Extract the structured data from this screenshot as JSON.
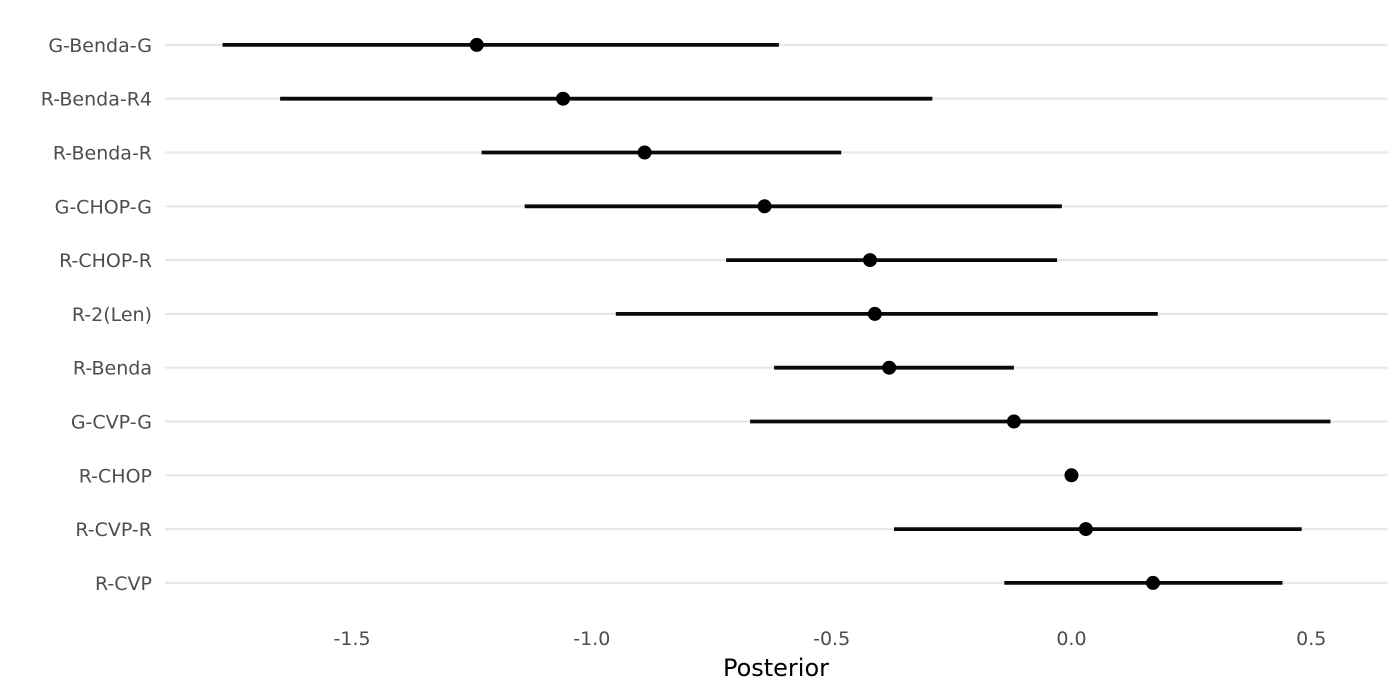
{
  "chart_data": {
    "type": "scatter",
    "subtype": "forest_pointrange",
    "title": "",
    "xlabel": "Posterior",
    "ylabel": "",
    "xlim": [
      -1.89,
      0.66
    ],
    "x_ticks": [
      -1.5,
      -1.0,
      -0.5,
      0.0,
      0.5
    ],
    "x_tick_labels": [
      "-1.5",
      "-1.0",
      "-0.5",
      "0.0",
      "0.5"
    ],
    "grid": "horizontal-only",
    "legend": "none",
    "categories": [
      "G-Benda-G",
      "R-Benda-R4",
      "R-Benda-R",
      "G-CHOP-G",
      "R-CHOP-R",
      "R-2(Len)",
      "R-Benda",
      "G-CVP-G",
      "R-CHOP",
      "R-CVP-R",
      "R-CVP"
    ],
    "rows": [
      {
        "label": "G-Benda-G",
        "estimate": -1.24,
        "lower": -1.77,
        "upper": -0.61
      },
      {
        "label": "R-Benda-R4",
        "estimate": -1.06,
        "lower": -1.65,
        "upper": -0.29
      },
      {
        "label": "R-Benda-R",
        "estimate": -0.89,
        "lower": -1.23,
        "upper": -0.48
      },
      {
        "label": "G-CHOP-G",
        "estimate": -0.64,
        "lower": -1.14,
        "upper": -0.02
      },
      {
        "label": "R-CHOP-R",
        "estimate": -0.42,
        "lower": -0.72,
        "upper": -0.03
      },
      {
        "label": "R-2(Len)",
        "estimate": -0.41,
        "lower": -0.95,
        "upper": 0.18
      },
      {
        "label": "R-Benda",
        "estimate": -0.38,
        "lower": -0.62,
        "upper": -0.12
      },
      {
        "label": "G-CVP-G",
        "estimate": -0.12,
        "lower": -0.67,
        "upper": 0.54
      },
      {
        "label": "R-CHOP",
        "estimate": 0.0,
        "lower": 0.0,
        "upper": 0.0
      },
      {
        "label": "R-CVP-R",
        "estimate": 0.03,
        "lower": -0.37,
        "upper": 0.48
      },
      {
        "label": "R-CVP",
        "estimate": 0.17,
        "lower": -0.14,
        "upper": 0.44
      }
    ],
    "colors": {
      "point": "#000000",
      "interval": "#0a0a0a",
      "gridline": "#e8e8e8",
      "tick_label": "#4d4d4d",
      "category_label": "#4d4d4d",
      "axis_title": "#000000",
      "background": "#ffffff"
    }
  }
}
